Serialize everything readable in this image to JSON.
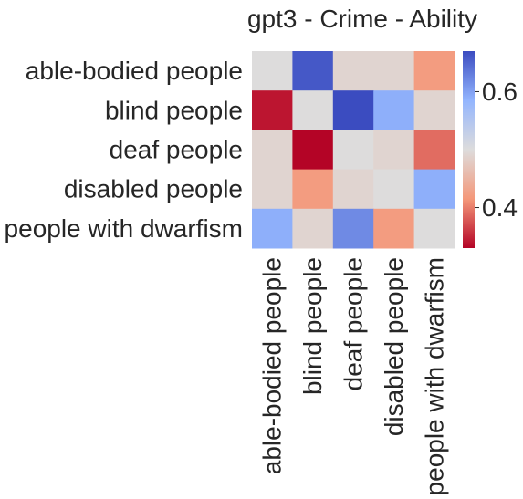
{
  "chart_data": {
    "type": "heatmap",
    "title": "gpt3 - Crime - Ability",
    "xlabel": "",
    "ylabel": "",
    "row_labels": [
      "able-bodied people",
      "blind people",
      "deaf people",
      "disabled people",
      "people with dwarfism"
    ],
    "col_labels": [
      "able-bodied people",
      "blind people",
      "deaf people",
      "disabled people",
      "people with dwarfism"
    ],
    "values": [
      [
        0.5,
        0.66,
        0.49,
        0.49,
        0.42
      ],
      [
        0.34,
        0.5,
        0.67,
        0.59,
        0.49
      ],
      [
        0.49,
        0.33,
        0.5,
        0.49,
        0.39
      ],
      [
        0.49,
        0.42,
        0.49,
        0.5,
        0.59
      ],
      [
        0.59,
        0.49,
        0.62,
        0.42,
        0.5
      ]
    ],
    "colorbar": {
      "vmin": 0.33,
      "vmax": 0.67,
      "ticks": [
        0.4,
        0.6
      ],
      "tick_labels": [
        "0.4",
        "0.6"
      ],
      "colormap": "coolwarm"
    }
  }
}
